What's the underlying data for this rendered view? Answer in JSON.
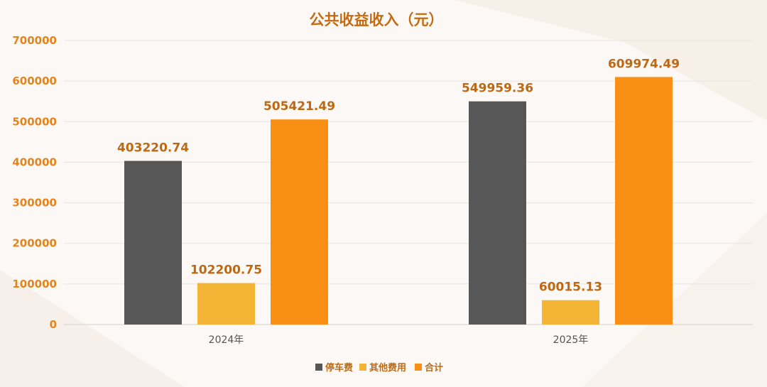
{
  "chart_data": {
    "type": "bar",
    "title": "公共收益收入（元）",
    "categories": [
      "2024年",
      "2025年"
    ],
    "series": [
      {
        "name": "停车费",
        "values": [
          403220.74,
          549959.36
        ],
        "color": "#575757"
      },
      {
        "name": "其他费用",
        "values": [
          102200.75,
          60015.13
        ],
        "color": "#f4b537"
      },
      {
        "name": "合计",
        "values": [
          505421.49,
          609974.49
        ],
        "color": "#f98f14"
      }
    ],
    "data_labels": [
      [
        "403220.74",
        "549959.36"
      ],
      [
        "102200.75",
        "60015.13"
      ],
      [
        "505421.49",
        "609974.49"
      ]
    ],
    "y_ticks": [
      "0",
      "100000",
      "200000",
      "300000",
      "400000",
      "500000",
      "600000",
      "700000"
    ],
    "ylim": [
      0,
      700000
    ],
    "xlabel": "",
    "ylabel": "",
    "grid": true,
    "legend_position": "bottom-center"
  }
}
